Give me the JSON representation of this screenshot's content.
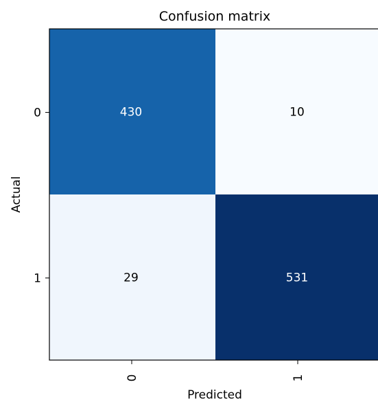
{
  "chart_data": {
    "type": "heatmap",
    "title": "Confusion matrix",
    "xlabel": "Predicted",
    "ylabel": "Actual",
    "x_categories": [
      "0",
      "1"
    ],
    "y_categories": [
      "0",
      "1"
    ],
    "values": [
      [
        430,
        10
      ],
      [
        29,
        531
      ]
    ],
    "colormap": "Blues",
    "grid": false,
    "legend": "none"
  }
}
